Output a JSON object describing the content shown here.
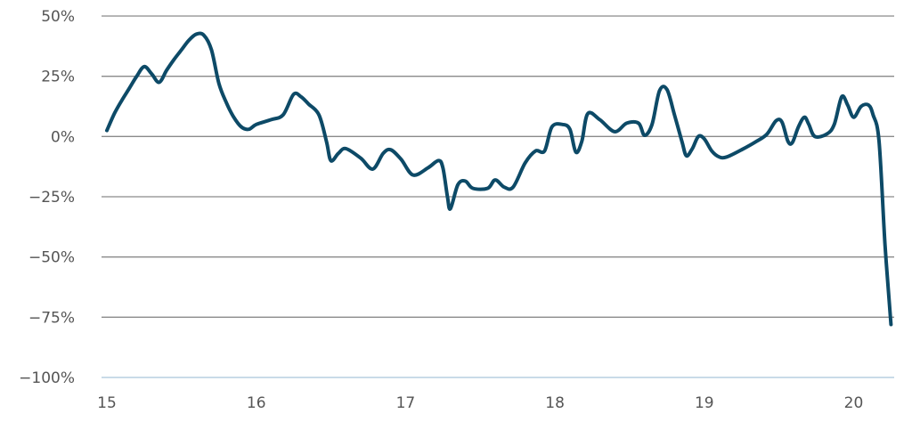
{
  "chart_data": {
    "type": "line",
    "title": "",
    "xlabel": "",
    "ylabel": "",
    "xlim": [
      15.0,
      20.3
    ],
    "ylim": [
      -100,
      50
    ],
    "x_ticks": [
      {
        "value": 15,
        "label": "15"
      },
      {
        "value": 16,
        "label": "16"
      },
      {
        "value": 17,
        "label": "17"
      },
      {
        "value": 18,
        "label": "18"
      },
      {
        "value": 19,
        "label": "19"
      },
      {
        "value": 20,
        "label": "20"
      }
    ],
    "y_ticks": [
      {
        "value": 50,
        "label": "50%"
      },
      {
        "value": 25,
        "label": "25%"
      },
      {
        "value": 0,
        "label": "0%"
      },
      {
        "value": -25,
        "label": "−25%"
      },
      {
        "value": -50,
        "label": "−50%"
      },
      {
        "value": -75,
        "label": "−75%"
      },
      {
        "value": -100,
        "label": "−100%"
      }
    ],
    "grid": true,
    "legend": "none",
    "colors": {
      "line": "#0d4a67",
      "grid": "#8a8a8a",
      "baseline": "#b7cfe0"
    },
    "series": [
      {
        "name": "",
        "points": [
          [
            15.0,
            2.5
          ],
          [
            15.05,
            9.5
          ],
          [
            15.1,
            15
          ],
          [
            15.15,
            20
          ],
          [
            15.2,
            25
          ],
          [
            15.25,
            29
          ],
          [
            15.3,
            26
          ],
          [
            15.35,
            22.5
          ],
          [
            15.4,
            27.5
          ],
          [
            15.45,
            32
          ],
          [
            15.5,
            36
          ],
          [
            15.55,
            40
          ],
          [
            15.6,
            42.5
          ],
          [
            15.65,
            42
          ],
          [
            15.7,
            36
          ],
          [
            15.75,
            22
          ],
          [
            15.8,
            14
          ],
          [
            15.85,
            8
          ],
          [
            15.9,
            4
          ],
          [
            15.95,
            3
          ],
          [
            16.0,
            5
          ],
          [
            16.1,
            7
          ],
          [
            16.18,
            9
          ],
          [
            16.25,
            17.5
          ],
          [
            16.3,
            16.5
          ],
          [
            16.35,
            13.5
          ],
          [
            16.42,
            9
          ],
          [
            16.47,
            -2
          ],
          [
            16.5,
            -10
          ],
          [
            16.55,
            -7
          ],
          [
            16.6,
            -5
          ],
          [
            16.7,
            -9
          ],
          [
            16.78,
            -13.5
          ],
          [
            16.85,
            -7
          ],
          [
            16.9,
            -5.5
          ],
          [
            16.97,
            -9.5
          ],
          [
            17.05,
            -16
          ],
          [
            17.15,
            -13
          ],
          [
            17.22,
            -10
          ],
          [
            17.25,
            -13
          ],
          [
            17.28,
            -25
          ],
          [
            17.3,
            -30
          ],
          [
            17.35,
            -20
          ],
          [
            17.4,
            -18.5
          ],
          [
            17.45,
            -21.5
          ],
          [
            17.55,
            -21.5
          ],
          [
            17.6,
            -18
          ],
          [
            17.66,
            -21
          ],
          [
            17.72,
            -21
          ],
          [
            17.8,
            -11
          ],
          [
            17.87,
            -6
          ],
          [
            17.93,
            -6
          ],
          [
            17.98,
            4
          ],
          [
            18.05,
            5
          ],
          [
            18.1,
            3
          ],
          [
            18.14,
            -6.5
          ],
          [
            18.18,
            -2
          ],
          [
            18.22,
            9.5
          ],
          [
            18.3,
            7
          ],
          [
            18.4,
            2
          ],
          [
            18.48,
            5.5
          ],
          [
            18.56,
            5.5
          ],
          [
            18.6,
            0.5
          ],
          [
            18.65,
            5
          ],
          [
            18.7,
            19
          ],
          [
            18.75,
            19.5
          ],
          [
            18.8,
            9
          ],
          [
            18.85,
            -2
          ],
          [
            18.88,
            -8
          ],
          [
            18.92,
            -5
          ],
          [
            18.96,
            0
          ],
          [
            19.0,
            -1
          ],
          [
            19.05,
            -6
          ],
          [
            19.1,
            -8.5
          ],
          [
            19.15,
            -8.5
          ],
          [
            19.25,
            -5.5
          ],
          [
            19.35,
            -2
          ],
          [
            19.42,
            1
          ],
          [
            19.48,
            6.5
          ],
          [
            19.52,
            6
          ],
          [
            19.56,
            -2
          ],
          [
            19.59,
            -2.5
          ],
          [
            19.63,
            4
          ],
          [
            19.67,
            8
          ],
          [
            19.7,
            5
          ],
          [
            19.74,
            0
          ],
          [
            19.82,
            1
          ],
          [
            19.87,
            5
          ],
          [
            19.92,
            16.5
          ],
          [
            19.96,
            13
          ],
          [
            20.0,
            8
          ],
          [
            20.05,
            12.5
          ],
          [
            20.1,
            13
          ],
          [
            20.13,
            9
          ],
          [
            20.17,
            -2
          ],
          [
            20.21,
            -45
          ],
          [
            20.25,
            -78
          ]
        ]
      }
    ]
  }
}
